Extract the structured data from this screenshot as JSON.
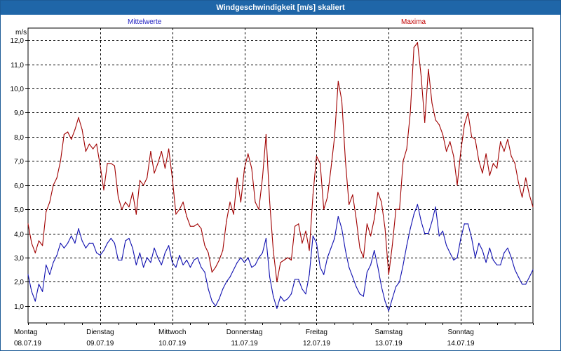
{
  "window": {
    "title": "Windgeschwindigkeit [m/s] skaliert"
  },
  "legend": {
    "mean": "Mittelwerte",
    "max": "Maxima"
  },
  "colors": {
    "mean": "#1010b0",
    "max": "#a00000",
    "grid": "#000000",
    "title_bar": "#1f66a8"
  },
  "chart_data": {
    "type": "line",
    "title": "Windgeschwindigkeit [m/s] skaliert",
    "ylabel": "m/s",
    "ylim": [
      0.3,
      12.5
    ],
    "yticks": [
      1.0,
      2.0,
      3.0,
      4.0,
      5.0,
      6.0,
      7.0,
      8.0,
      9.0,
      10.0,
      11.0,
      12.0
    ],
    "ytick_labels": [
      "1,0",
      "2,0",
      "3,0",
      "4,0",
      "5,0",
      "6,0",
      "7,0",
      "8,0",
      "9,0",
      "10,0",
      "11,0",
      "12,0"
    ],
    "xlim_days": [
      0,
      7
    ],
    "grid": "dashed",
    "x_categories": [
      {
        "day": "Montag",
        "date": "08.07.19"
      },
      {
        "day": "Dienstag",
        "date": "09.07.19"
      },
      {
        "day": "Mittwoch",
        "date": "10.07.19"
      },
      {
        "day": "Donnerstag",
        "date": "11.07.19"
      },
      {
        "day": "Freitag",
        "date": "12.07.19"
      },
      {
        "day": "Samstag",
        "date": "13.07.19"
      },
      {
        "day": "Sonntag",
        "date": "14.07.19"
      }
    ],
    "series": [
      {
        "name": "Maxima",
        "color": "#a00000",
        "points": [
          [
            0.0,
            4.4
          ],
          [
            0.05,
            3.6
          ],
          [
            0.1,
            3.2
          ],
          [
            0.15,
            3.7
          ],
          [
            0.2,
            3.5
          ],
          [
            0.25,
            4.9
          ],
          [
            0.3,
            5.3
          ],
          [
            0.35,
            6.0
          ],
          [
            0.4,
            6.3
          ],
          [
            0.45,
            7.0
          ],
          [
            0.5,
            8.1
          ],
          [
            0.55,
            8.2
          ],
          [
            0.6,
            7.9
          ],
          [
            0.65,
            8.3
          ],
          [
            0.7,
            8.8
          ],
          [
            0.75,
            8.3
          ],
          [
            0.8,
            7.4
          ],
          [
            0.85,
            7.7
          ],
          [
            0.9,
            7.5
          ],
          [
            0.95,
            7.7
          ],
          [
            1.0,
            6.8
          ],
          [
            1.05,
            5.8
          ],
          [
            1.1,
            6.9
          ],
          [
            1.15,
            6.9
          ],
          [
            1.2,
            6.8
          ],
          [
            1.25,
            5.5
          ],
          [
            1.3,
            5.0
          ],
          [
            1.35,
            5.3
          ],
          [
            1.4,
            5.1
          ],
          [
            1.45,
            5.7
          ],
          [
            1.5,
            4.8
          ],
          [
            1.55,
            6.2
          ],
          [
            1.6,
            6.0
          ],
          [
            1.65,
            6.3
          ],
          [
            1.7,
            7.4
          ],
          [
            1.75,
            6.5
          ],
          [
            1.8,
            6.9
          ],
          [
            1.85,
            7.4
          ],
          [
            1.9,
            6.7
          ],
          [
            1.95,
            7.5
          ],
          [
            2.0,
            6.3
          ],
          [
            2.05,
            4.8
          ],
          [
            2.1,
            5.0
          ],
          [
            2.15,
            5.3
          ],
          [
            2.2,
            4.7
          ],
          [
            2.25,
            4.3
          ],
          [
            2.3,
            4.3
          ],
          [
            2.35,
            4.4
          ],
          [
            2.4,
            4.2
          ],
          [
            2.45,
            3.5
          ],
          [
            2.5,
            3.2
          ],
          [
            2.55,
            2.4
          ],
          [
            2.6,
            2.6
          ],
          [
            2.65,
            2.9
          ],
          [
            2.7,
            3.3
          ],
          [
            2.75,
            4.5
          ],
          [
            2.8,
            5.3
          ],
          [
            2.85,
            4.8
          ],
          [
            2.9,
            6.3
          ],
          [
            2.95,
            5.3
          ],
          [
            3.0,
            6.7
          ],
          [
            3.05,
            7.3
          ],
          [
            3.1,
            6.7
          ],
          [
            3.15,
            5.3
          ],
          [
            3.2,
            5.0
          ],
          [
            3.25,
            6.3
          ],
          [
            3.3,
            8.1
          ],
          [
            3.35,
            5.3
          ],
          [
            3.4,
            3.3
          ],
          [
            3.45,
            2.0
          ],
          [
            3.5,
            2.8
          ],
          [
            3.55,
            2.9
          ],
          [
            3.6,
            3.0
          ],
          [
            3.65,
            2.9
          ],
          [
            3.7,
            4.3
          ],
          [
            3.75,
            4.4
          ],
          [
            3.8,
            3.6
          ],
          [
            3.85,
            4.1
          ],
          [
            3.9,
            3.3
          ],
          [
            3.95,
            5.6
          ],
          [
            4.0,
            7.2
          ],
          [
            4.05,
            6.9
          ],
          [
            4.1,
            5.0
          ],
          [
            4.15,
            5.5
          ],
          [
            4.2,
            6.7
          ],
          [
            4.25,
            8.0
          ],
          [
            4.3,
            10.3
          ],
          [
            4.35,
            9.5
          ],
          [
            4.4,
            7.0
          ],
          [
            4.45,
            5.2
          ],
          [
            4.5,
            5.6
          ],
          [
            4.55,
            4.6
          ],
          [
            4.6,
            3.4
          ],
          [
            4.65,
            3.0
          ],
          [
            4.7,
            4.4
          ],
          [
            4.75,
            3.9
          ],
          [
            4.8,
            4.6
          ],
          [
            4.85,
            5.7
          ],
          [
            4.9,
            5.3
          ],
          [
            4.95,
            4.2
          ],
          [
            5.0,
            2.3
          ],
          [
            5.05,
            3.5
          ],
          [
            5.1,
            5.0
          ],
          [
            5.15,
            5.0
          ],
          [
            5.2,
            7.0
          ],
          [
            5.25,
            7.5
          ],
          [
            5.3,
            9.0
          ],
          [
            5.35,
            11.7
          ],
          [
            5.4,
            11.9
          ],
          [
            5.45,
            10.5
          ],
          [
            5.5,
            8.6
          ],
          [
            5.55,
            10.8
          ],
          [
            5.6,
            9.4
          ],
          [
            5.65,
            8.7
          ],
          [
            5.7,
            8.5
          ],
          [
            5.75,
            8.1
          ],
          [
            5.8,
            7.4
          ],
          [
            5.85,
            7.8
          ],
          [
            5.9,
            7.2
          ],
          [
            5.95,
            6.0
          ],
          [
            6.0,
            7.4
          ],
          [
            6.05,
            8.5
          ],
          [
            6.1,
            9.0
          ],
          [
            6.15,
            8.0
          ],
          [
            6.2,
            7.9
          ],
          [
            6.25,
            7.0
          ],
          [
            6.3,
            6.5
          ],
          [
            6.35,
            7.3
          ],
          [
            6.4,
            6.4
          ],
          [
            6.45,
            6.9
          ],
          [
            6.5,
            6.7
          ],
          [
            6.55,
            7.8
          ],
          [
            6.6,
            7.4
          ],
          [
            6.65,
            7.9
          ],
          [
            6.7,
            7.2
          ],
          [
            6.75,
            6.9
          ],
          [
            6.8,
            6.1
          ],
          [
            6.85,
            5.5
          ],
          [
            6.9,
            6.3
          ],
          [
            6.95,
            5.6
          ],
          [
            7.0,
            5.1
          ]
        ]
      },
      {
        "name": "Mittelwerte",
        "color": "#1010b0",
        "points": [
          [
            0.0,
            2.3
          ],
          [
            0.05,
            1.6
          ],
          [
            0.1,
            1.2
          ],
          [
            0.15,
            1.9
          ],
          [
            0.2,
            1.6
          ],
          [
            0.25,
            2.7
          ],
          [
            0.3,
            2.3
          ],
          [
            0.35,
            2.8
          ],
          [
            0.4,
            3.1
          ],
          [
            0.45,
            3.6
          ],
          [
            0.5,
            3.4
          ],
          [
            0.55,
            3.6
          ],
          [
            0.6,
            3.9
          ],
          [
            0.65,
            3.6
          ],
          [
            0.7,
            4.2
          ],
          [
            0.75,
            3.7
          ],
          [
            0.8,
            3.4
          ],
          [
            0.85,
            3.6
          ],
          [
            0.9,
            3.6
          ],
          [
            0.95,
            3.2
          ],
          [
            1.0,
            3.1
          ],
          [
            1.05,
            3.3
          ],
          [
            1.1,
            3.6
          ],
          [
            1.15,
            3.8
          ],
          [
            1.2,
            3.6
          ],
          [
            1.25,
            2.9
          ],
          [
            1.3,
            2.9
          ],
          [
            1.35,
            3.7
          ],
          [
            1.4,
            3.8
          ],
          [
            1.45,
            3.4
          ],
          [
            1.5,
            2.7
          ],
          [
            1.55,
            3.2
          ],
          [
            1.6,
            2.6
          ],
          [
            1.65,
            3.0
          ],
          [
            1.7,
            2.8
          ],
          [
            1.75,
            3.4
          ],
          [
            1.8,
            3.0
          ],
          [
            1.85,
            2.7
          ],
          [
            1.9,
            3.2
          ],
          [
            1.95,
            3.5
          ],
          [
            2.0,
            2.8
          ],
          [
            2.05,
            2.6
          ],
          [
            2.1,
            3.1
          ],
          [
            2.15,
            2.7
          ],
          [
            2.2,
            2.9
          ],
          [
            2.25,
            2.6
          ],
          [
            2.3,
            2.9
          ],
          [
            2.35,
            3.0
          ],
          [
            2.4,
            2.6
          ],
          [
            2.45,
            2.4
          ],
          [
            2.5,
            1.7
          ],
          [
            2.55,
            1.2
          ],
          [
            2.6,
            1.0
          ],
          [
            2.65,
            1.3
          ],
          [
            2.7,
            1.7
          ],
          [
            2.75,
            2.0
          ],
          [
            2.8,
            2.2
          ],
          [
            2.85,
            2.5
          ],
          [
            2.9,
            2.8
          ],
          [
            2.95,
            3.0
          ],
          [
            3.0,
            2.8
          ],
          [
            3.05,
            3.0
          ],
          [
            3.1,
            2.6
          ],
          [
            3.15,
            2.7
          ],
          [
            3.2,
            3.0
          ],
          [
            3.25,
            3.2
          ],
          [
            3.3,
            3.8
          ],
          [
            3.35,
            2.2
          ],
          [
            3.4,
            1.4
          ],
          [
            3.45,
            0.9
          ],
          [
            3.5,
            1.4
          ],
          [
            3.55,
            1.2
          ],
          [
            3.6,
            1.3
          ],
          [
            3.65,
            1.5
          ],
          [
            3.7,
            2.1
          ],
          [
            3.75,
            2.1
          ],
          [
            3.8,
            1.7
          ],
          [
            3.85,
            1.5
          ],
          [
            3.9,
            2.3
          ],
          [
            3.95,
            3.9
          ],
          [
            4.0,
            3.6
          ],
          [
            4.05,
            2.6
          ],
          [
            4.1,
            2.3
          ],
          [
            4.15,
            3.0
          ],
          [
            4.2,
            3.4
          ],
          [
            4.25,
            3.8
          ],
          [
            4.3,
            4.7
          ],
          [
            4.35,
            4.2
          ],
          [
            4.4,
            3.3
          ],
          [
            4.45,
            2.6
          ],
          [
            4.5,
            2.2
          ],
          [
            4.55,
            1.8
          ],
          [
            4.6,
            1.5
          ],
          [
            4.65,
            1.4
          ],
          [
            4.7,
            2.4
          ],
          [
            4.75,
            2.7
          ],
          [
            4.8,
            3.3
          ],
          [
            4.85,
            2.6
          ],
          [
            4.9,
            1.8
          ],
          [
            4.95,
            1.2
          ],
          [
            5.0,
            0.8
          ],
          [
            5.05,
            1.3
          ],
          [
            5.1,
            1.8
          ],
          [
            5.15,
            2.0
          ],
          [
            5.2,
            2.7
          ],
          [
            5.25,
            3.5
          ],
          [
            5.3,
            4.2
          ],
          [
            5.35,
            4.8
          ],
          [
            5.4,
            5.2
          ],
          [
            5.45,
            4.5
          ],
          [
            5.5,
            4.0
          ],
          [
            5.55,
            4.0
          ],
          [
            5.6,
            4.5
          ],
          [
            5.65,
            5.1
          ],
          [
            5.7,
            3.9
          ],
          [
            5.75,
            4.1
          ],
          [
            5.8,
            3.5
          ],
          [
            5.85,
            3.2
          ],
          [
            5.9,
            2.9
          ],
          [
            5.95,
            3.0
          ],
          [
            6.0,
            3.8
          ],
          [
            6.05,
            4.4
          ],
          [
            6.1,
            4.4
          ],
          [
            6.15,
            3.8
          ],
          [
            6.2,
            3.0
          ],
          [
            6.25,
            3.6
          ],
          [
            6.3,
            3.3
          ],
          [
            6.35,
            2.8
          ],
          [
            6.4,
            3.4
          ],
          [
            6.45,
            2.9
          ],
          [
            6.5,
            2.7
          ],
          [
            6.55,
            2.7
          ],
          [
            6.6,
            3.2
          ],
          [
            6.65,
            3.4
          ],
          [
            6.7,
            3.0
          ],
          [
            6.75,
            2.5
          ],
          [
            6.8,
            2.2
          ],
          [
            6.85,
            1.9
          ],
          [
            6.9,
            1.9
          ],
          [
            6.95,
            2.2
          ],
          [
            7.0,
            2.5
          ]
        ]
      }
    ]
  }
}
